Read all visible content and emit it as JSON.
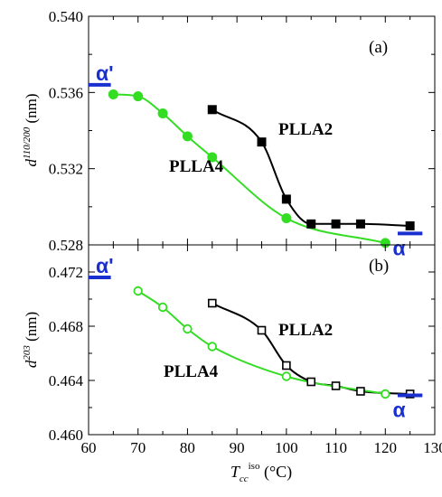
{
  "chart_data": [
    {
      "type": "line",
      "panel_label": "(a)",
      "ylabel_main": "d",
      "ylabel_sup": "110/200",
      "ylabel_unit": " (nm)",
      "ylim": [
        0.528,
        0.54
      ],
      "yticks": [
        0.528,
        0.532,
        0.536,
        0.54
      ],
      "ytick_labels": [
        "0.528",
        "0.532",
        "0.536",
        "0.540"
      ],
      "xlim": [
        60,
        130
      ],
      "grid": false,
      "series": [
        {
          "name": "PLLA2",
          "marker": "filled-square",
          "color": "#000000",
          "x": [
            85,
            95,
            100,
            105,
            110,
            115,
            125
          ],
          "y": [
            0.5351,
            0.5334,
            0.5304,
            0.5291,
            0.5291,
            0.5291,
            0.529
          ]
        },
        {
          "name": "PLLA4",
          "marker": "filled-circle",
          "color": "#33dd22",
          "x": [
            65,
            70,
            75,
            80,
            85,
            100,
            120
          ],
          "y": [
            0.5359,
            0.5358,
            0.5349,
            0.5337,
            0.5326,
            0.5294,
            0.5281
          ]
        }
      ],
      "annotations": [
        {
          "text": "α'",
          "color": "#1a2fd0",
          "at_x": 62,
          "at_y": 0.5364
        },
        {
          "text": "α",
          "color": "#1a2fd0",
          "at_x": 125,
          "at_y": 0.5286
        }
      ]
    },
    {
      "type": "line",
      "panel_label": "(b)",
      "ylabel_main": "d",
      "ylabel_sup": "203",
      "ylabel_unit": " (nm)",
      "ylim": [
        0.46,
        0.474
      ],
      "yticks": [
        0.46,
        0.464,
        0.468,
        0.472
      ],
      "ytick_labels": [
        "0.460",
        "0.464",
        "0.468",
        "0.472"
      ],
      "xlim": [
        60,
        130
      ],
      "grid": false,
      "series": [
        {
          "name": "PLLA2",
          "marker": "open-square",
          "color": "#000000",
          "x": [
            85,
            95,
            100,
            105,
            110,
            115,
            125
          ],
          "y": [
            0.4697,
            0.4677,
            0.4651,
            0.4639,
            0.4636,
            0.4632,
            0.463
          ]
        },
        {
          "name": "PLLA4",
          "marker": "open-circle",
          "color": "#33dd22",
          "x": [
            70,
            75,
            80,
            85,
            100,
            120
          ],
          "y": [
            0.4706,
            0.4694,
            0.4678,
            0.4665,
            0.4643,
            0.463
          ]
        }
      ],
      "annotations": [
        {
          "text": "α'",
          "color": "#1a2fd0",
          "at_x": 62,
          "at_y": 0.4716
        },
        {
          "text": "α",
          "color": "#1a2fd0",
          "at_x": 125,
          "at_y": 0.4629
        }
      ]
    }
  ],
  "x_axis": {
    "ticks": [
      60,
      70,
      80,
      90,
      100,
      110,
      120,
      130
    ],
    "tick_labels": [
      "60",
      "70",
      "80",
      "90",
      "100",
      "110",
      "120",
      "130"
    ],
    "label_main": "T",
    "label_sub": "cc",
    "label_sup": "iso",
    "label_unit": " (°C)"
  },
  "colors": {
    "PLLA2": "#000000",
    "PLLA4": "#33dd22",
    "phase_markers": "#1a2fd0"
  }
}
